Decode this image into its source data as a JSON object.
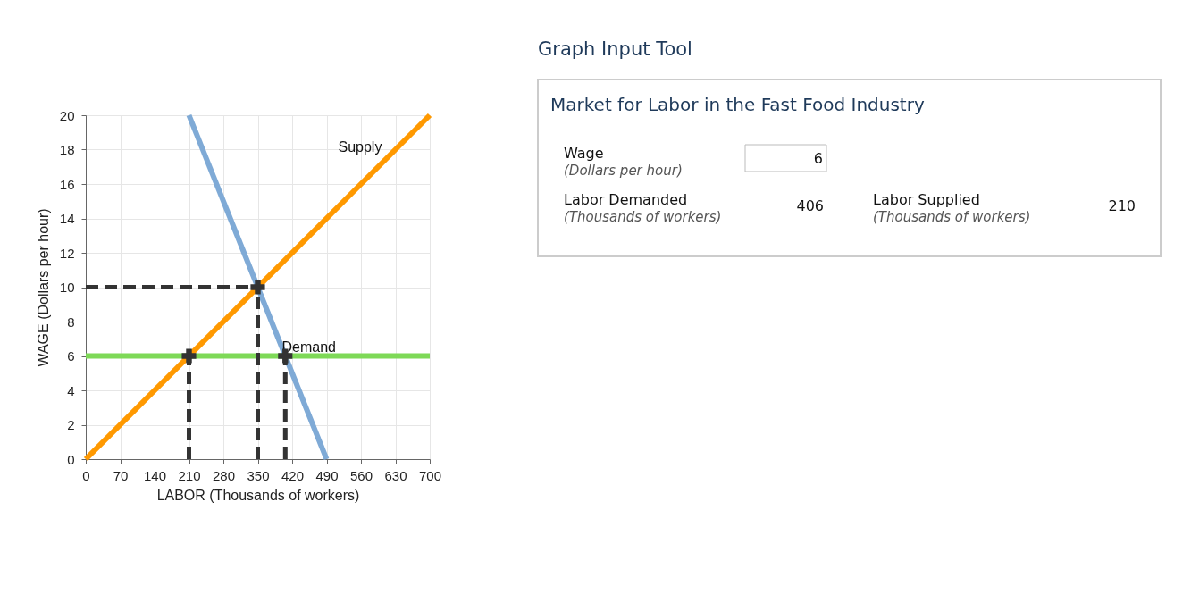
{
  "chart_data": {
    "type": "line",
    "title": "Market for Labor in the Fast Food Industry",
    "xlabel": "LABOR (Thousands of workers)",
    "ylabel": "WAGE (Dollars per hour)",
    "xlim": [
      0,
      700
    ],
    "ylim": [
      0,
      20
    ],
    "xticks": [
      0,
      70,
      140,
      210,
      280,
      350,
      420,
      490,
      560,
      630,
      700
    ],
    "yticks": [
      0,
      2,
      4,
      6,
      8,
      10,
      12,
      14,
      16,
      18,
      20
    ],
    "grid": true,
    "series": [
      {
        "name": "Demand",
        "color": "#7faad6",
        "x": [
          210,
          490
        ],
        "values": [
          20,
          0
        ]
      },
      {
        "color": "#7ed957",
        "x": [
          0,
          700
        ],
        "values": [
          6,
          6
        ]
      },
      {
        "name": "Supply",
        "color": "#ff9900",
        "x": [
          0,
          700
        ],
        "values": [
          0,
          20
        ]
      },
      {
        "color": "#333333",
        "line_style": "dashed",
        "x": [
          0,
          350
        ],
        "values": [
          10,
          10
        ]
      },
      {
        "color": "#333333",
        "line_style": "dashed",
        "x": [
          350,
          350
        ],
        "values": [
          0,
          10
        ]
      },
      {
        "color": "#333333",
        "line_style": "dashed",
        "x": [
          210,
          210
        ],
        "values": [
          0,
          6
        ]
      },
      {
        "color": "#333333",
        "line_style": "dashed",
        "x": [
          406,
          406
        ],
        "values": [
          0,
          6
        ]
      },
      {
        "type": "scatter",
        "marker": "cross",
        "color": "#333333",
        "x": [
          210,
          350,
          406
        ],
        "values": [
          6,
          10,
          6
        ]
      }
    ],
    "annotations": [
      "Graph Input Tool",
      "Wage",
      "(Dollars per hour)",
      "6",
      "Labor Demanded",
      "(Thousands of workers)",
      "406",
      "Labor Supplied",
      "(Thousands of workers)",
      "210"
    ]
  }
}
